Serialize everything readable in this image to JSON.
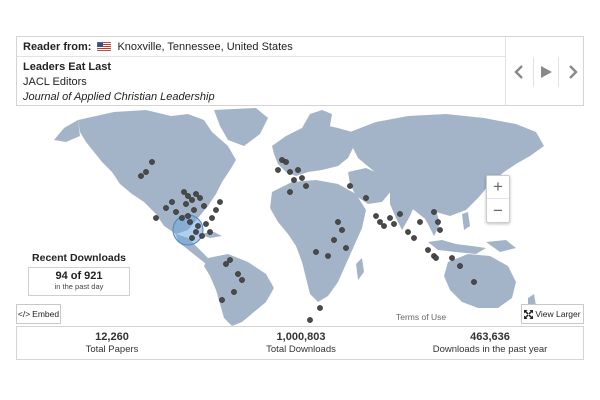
{
  "reader": {
    "label": "Reader from:",
    "location": "Knoxville, Tennessee, United States",
    "flag_icon": "us-flag-icon"
  },
  "paper": {
    "title": "Leaders Eat Last",
    "authors": "JACL Editors",
    "journal": "Journal of Applied Christian Leadership"
  },
  "navigation": {
    "prev_icon": "chevron-left-icon",
    "play_icon": "play-icon",
    "next_icon": "chevron-right-icon"
  },
  "map": {
    "zoom_in": "+",
    "zoom_out": "−",
    "terms": "Terms of Use",
    "embed_label": "Embed",
    "view_larger_label": "View Larger",
    "land_color": "#a4b4c8",
    "marker_color": "#4a4a4a",
    "highlight_color": "#6fa8dc"
  },
  "recent_downloads": {
    "title": "Recent Downloads",
    "count": "94 of 921",
    "subtitle": "in the past day"
  },
  "stats": [
    {
      "value": "12,260",
      "label": "Total Papers"
    },
    {
      "value": "1,000,803",
      "label": "Total Downloads"
    },
    {
      "value": "463,636",
      "label": "Downloads in the past year"
    }
  ]
}
